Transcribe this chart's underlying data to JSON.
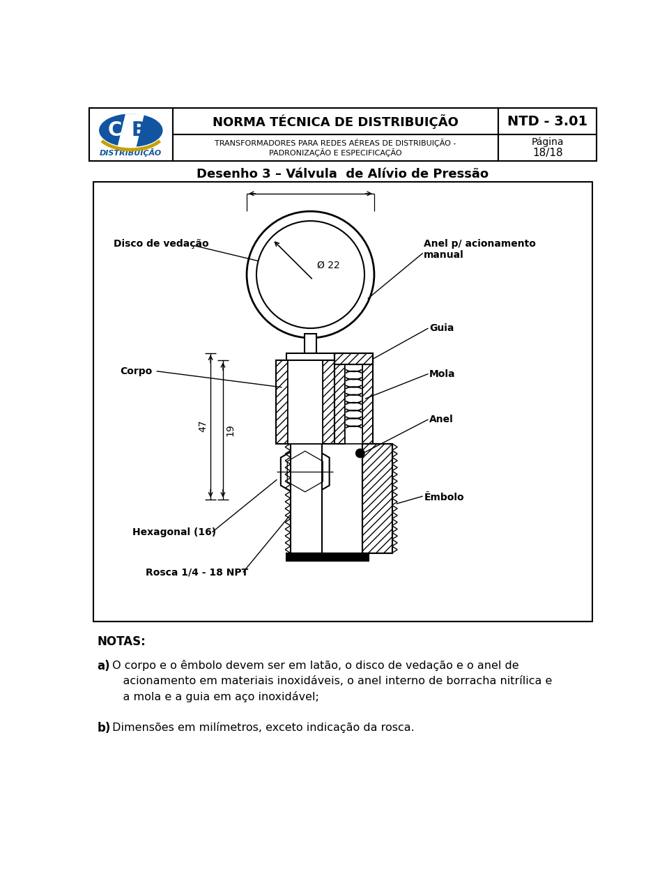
{
  "title": "Desenho 3 – Válvula  de Alívio de Pressão",
  "header_title": "NORMA TÉCNICA DE DISTRIBUIÇÃO",
  "header_subtitle": "TRANSFORMADORES PARA REDES AÉREAS DE DISTRIBUIÇÃO -\nPADRONIZAÇÃO E ESPECIFICAÇÃO",
  "header_ntd": "NTD - 3.01",
  "header_pagina": "Página",
  "header_page_num": "18/18",
  "notes_title": "NOTAS:",
  "note_a_bold": "a)",
  "note_a_text": " O corpo e o êmbolo devem ser em latão, o disco de vedação e o anel de\n    acionamento em materiais inoxidáveis, o anel interno de borracha nitrílica e\n    a mola e a guia em aço inoxidável;",
  "note_b_bold": "b)",
  "note_b_text": " Dimensões em milímetros, exceto indicação da rosca.",
  "label_disco": "Disco de vedação",
  "label_anel_man": "Anel p/ acionamento\nmanual",
  "label_corpo": "Corpo",
  "label_guia": "Guia",
  "label_mola": "Mola",
  "label_anel": "Anel",
  "label_embolo": "Êmbolo",
  "label_hexagonal": "Hexagonal (16)",
  "label_rosca": "Rosca 1/4 - 18 NPT",
  "dim_22": "Ø 22",
  "dim_47": "47",
  "dim_19": "19",
  "bg_color": "#ffffff",
  "line_color": "#000000"
}
